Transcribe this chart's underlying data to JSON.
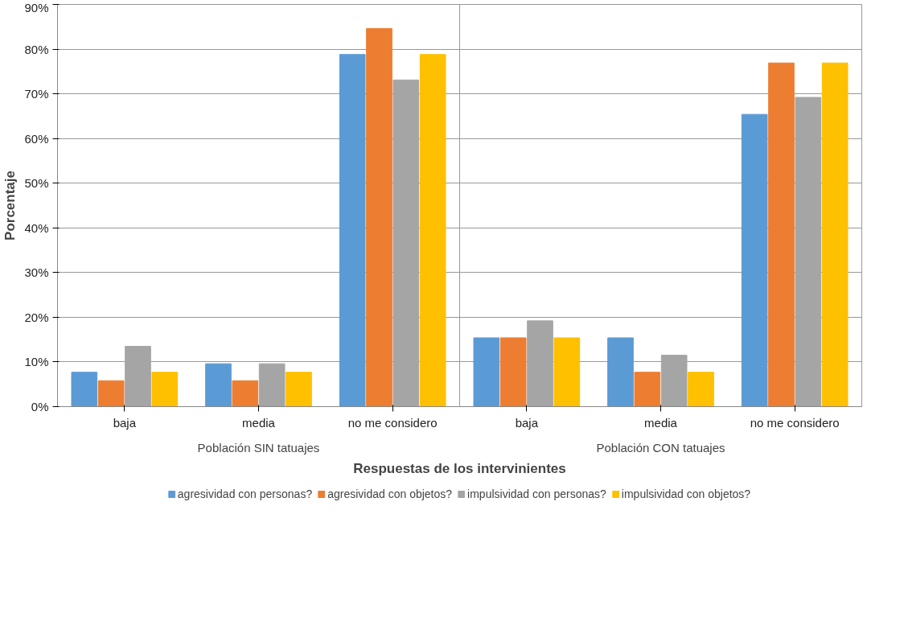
{
  "chart_data": {
    "type": "bar",
    "xlabel": "Respuestas de los intervinientes",
    "ylabel": "Porcentaje",
    "categories": [
      "baja",
      "media",
      "no me considero",
      "baja",
      "media",
      "no me considero"
    ],
    "annotations": [
      "Población SIN tatuajes",
      "Población CON tatuajes"
    ],
    "series": [
      {
        "name": "agresividad con personas?",
        "color": "#5b9bd5",
        "values": [
          7.7,
          9.6,
          78.8,
          15.4,
          15.4,
          65.4
        ]
      },
      {
        "name": "agresividad con objetos?",
        "color": "#ed7d31",
        "values": [
          5.8,
          5.8,
          84.6,
          15.4,
          7.7,
          76.9
        ]
      },
      {
        "name": "impulsividad con personas?",
        "color": "#a5a5a5",
        "values": [
          13.5,
          9.6,
          73.1,
          19.2,
          11.5,
          69.2
        ]
      },
      {
        "name": "impulsividad con objetos?",
        "color": "#ffc000",
        "values": [
          7.7,
          7.7,
          78.8,
          15.4,
          7.7,
          76.9
        ]
      }
    ],
    "ylim": [
      0,
      90
    ],
    "yticks": [
      {
        "value": 0,
        "label": "0%"
      },
      {
        "value": 10,
        "label": "10%"
      },
      {
        "value": 20,
        "label": "20%"
      },
      {
        "value": 30,
        "label": "30%"
      },
      {
        "value": 40,
        "label": "40%"
      },
      {
        "value": 50,
        "label": "50%"
      },
      {
        "value": 60,
        "label": "60%"
      },
      {
        "value": 70,
        "label": "70%"
      },
      {
        "value": 80,
        "label": "80%"
      },
      {
        "value": 90,
        "label": "90%"
      }
    ],
    "grid": "y",
    "legend": "bottom"
  }
}
